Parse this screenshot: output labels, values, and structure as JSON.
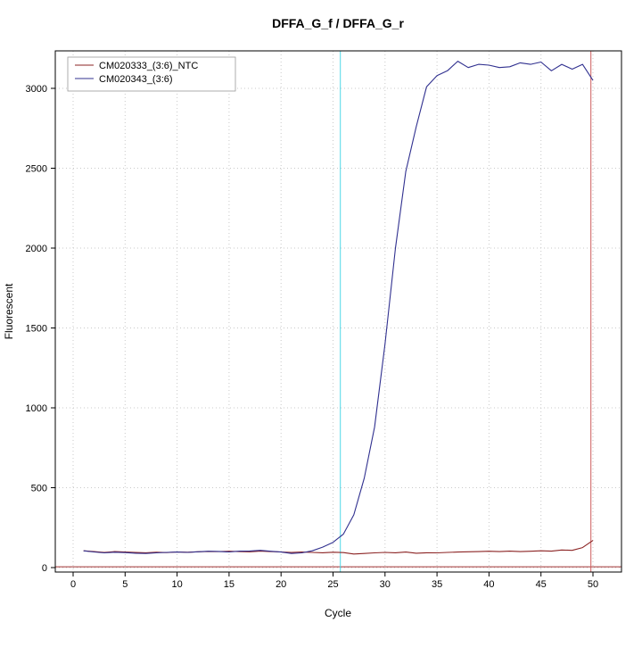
{
  "chart_data": {
    "type": "line",
    "title": "DFFA_G_f / DFFA_G_r",
    "xlabel": "Cycle",
    "ylabel": "Fluorescent",
    "xlim": [
      -1.7,
      52.7
    ],
    "ylim": [
      -130,
      3240
    ],
    "x_ticks": [
      0,
      5,
      10,
      15,
      20,
      25,
      30,
      35,
      40,
      45,
      50
    ],
    "y_ticks": [
      0,
      500,
      1000,
      1500,
      2000,
      2500,
      3000
    ],
    "grid": true,
    "grid_style": "dotted",
    "legend_position": "top-left",
    "cycles": [
      1,
      2,
      3,
      4,
      5,
      6,
      7,
      8,
      9,
      10,
      11,
      12,
      13,
      14,
      15,
      16,
      17,
      18,
      19,
      20,
      21,
      22,
      23,
      24,
      25,
      26,
      27,
      28,
      29,
      30,
      31,
      32,
      33,
      34,
      35,
      36,
      37,
      38,
      39,
      40,
      41,
      42,
      43,
      44,
      45,
      46,
      47,
      48,
      49,
      50
    ],
    "series": [
      {
        "name": "CM020333_(3:6)_NTC",
        "color": "#8b2323",
        "values": [
          105,
          100,
          95,
          100,
          98,
          95,
          93,
          96,
          94,
          98,
          96,
          99,
          101,
          100,
          102,
          100,
          99,
          103,
          100,
          98,
          95,
          97,
          95,
          93,
          96,
          94,
          85,
          88,
          92,
          95,
          93,
          97,
          90,
          93,
          92,
          95,
          97,
          99,
          100,
          102,
          100,
          103,
          100,
          102,
          105,
          103,
          110,
          108,
          125,
          170
        ]
      },
      {
        "name": "CM020343_(3:6)",
        "color": "#30308f",
        "values": [
          105,
          98,
          92,
          96,
          94,
          90,
          88,
          92,
          95,
          97,
          95,
          99,
          102,
          101,
          98,
          103,
          104,
          108,
          102,
          97,
          88,
          92,
          105,
          128,
          158,
          210,
          330,
          560,
          880,
          1400,
          2000,
          2480,
          2760,
          3010,
          3080,
          3110,
          3170,
          3130,
          3150,
          3145,
          3130,
          3135,
          3160,
          3150,
          3165,
          3110,
          3150,
          3120,
          3150,
          3050
        ]
      }
    ],
    "threshold_line": {
      "y": 5,
      "color": "#a03333"
    },
    "vlines": [
      {
        "name": "ct-threshold",
        "x": 25.7,
        "color": "#4fd8e8"
      },
      {
        "name": "end-cycle",
        "x": 49.8,
        "color": "#cd5c5c"
      }
    ]
  }
}
